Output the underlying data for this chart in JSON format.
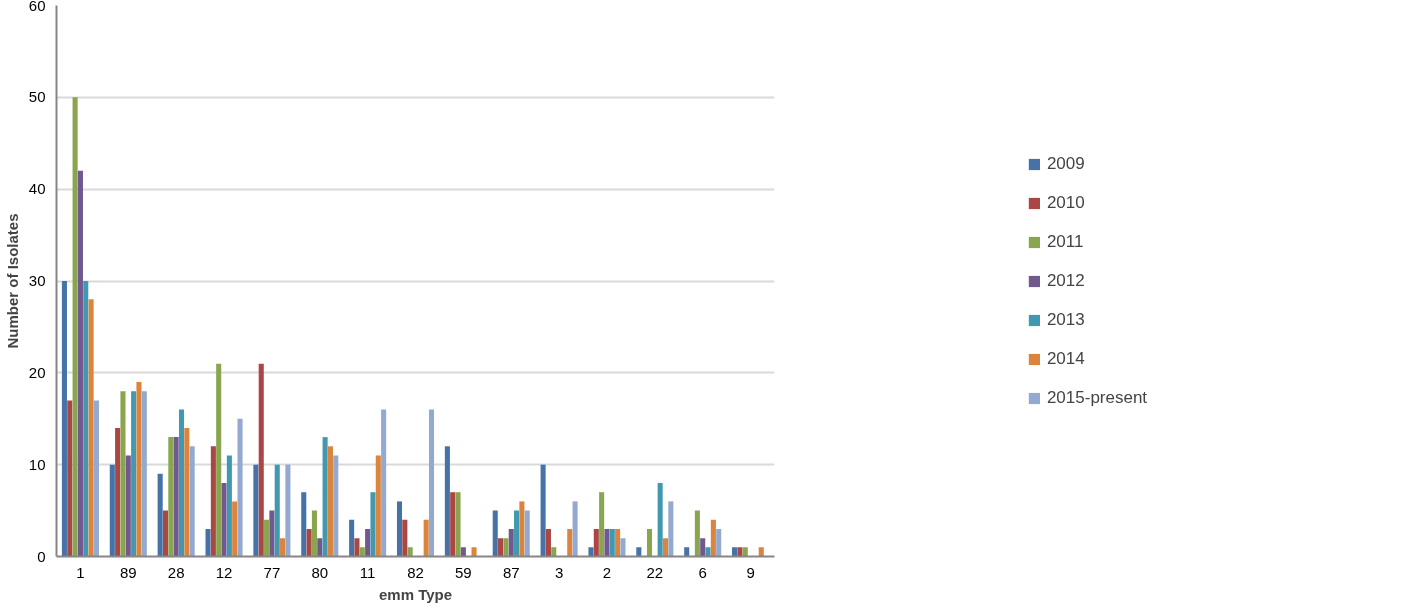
{
  "chart_data": {
    "type": "bar",
    "xlabel": "emm Type",
    "ylabel": "Number of Isolates",
    "categories": [
      "1",
      "89",
      "28",
      "12",
      "77",
      "80",
      "11",
      "82",
      "59",
      "87",
      "3",
      "2",
      "22",
      "6",
      "9"
    ],
    "series": [
      {
        "name": "2009",
        "color": "#4572a7",
        "values": [
          30,
          10,
          9,
          3,
          10,
          7,
          4,
          6,
          12,
          5,
          10,
          1,
          1,
          1,
          1
        ]
      },
      {
        "name": "2010",
        "color": "#aa4643",
        "values": [
          17,
          14,
          5,
          12,
          21,
          3,
          2,
          4,
          7,
          2,
          3,
          3,
          0,
          0,
          1
        ]
      },
      {
        "name": "2011",
        "color": "#89a54e",
        "values": [
          50,
          18,
          13,
          21,
          4,
          5,
          1,
          1,
          7,
          2,
          1,
          7,
          3,
          5,
          1
        ]
      },
      {
        "name": "2012",
        "color": "#71588f",
        "values": [
          42,
          11,
          13,
          8,
          5,
          2,
          3,
          0,
          1,
          3,
          0,
          3,
          0,
          2,
          0
        ]
      },
      {
        "name": "2013",
        "color": "#4198af",
        "values": [
          30,
          18,
          16,
          11,
          10,
          13,
          7,
          0,
          0,
          5,
          0,
          3,
          8,
          1,
          0
        ]
      },
      {
        "name": "2014",
        "color": "#db843d",
        "values": [
          28,
          19,
          14,
          6,
          2,
          12,
          11,
          4,
          1,
          6,
          3,
          3,
          2,
          4,
          1
        ]
      },
      {
        "name": "2015-present",
        "color": "#93a9cf",
        "values": [
          17,
          18,
          12,
          15,
          10,
          11,
          16,
          16,
          0,
          5,
          6,
          2,
          6,
          3,
          0
        ]
      }
    ],
    "ylim": [
      0,
      60
    ],
    "yticks": [
      0,
      10,
      20,
      30,
      40,
      50,
      60
    ],
    "grid": "y",
    "legend": "right"
  }
}
